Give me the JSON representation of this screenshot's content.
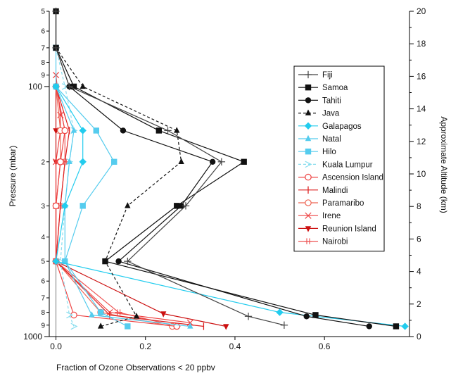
{
  "chart_data": {
    "type": "line",
    "xlabel": "Fraction of Ozone Observations < 20 ppbv",
    "ylabel_left": "Pressure (mbar)",
    "ylabel_right": "Approximate Altitude (km)",
    "x_axis": {
      "range": [
        -0.015,
        0.79
      ],
      "ticks": [
        0.0,
        0.2,
        0.4,
        0.6
      ],
      "tick_labels": [
        "0.0",
        "0.2",
        "0.4",
        "0.6"
      ]
    },
    "y_axis_left": {
      "scale": "log",
      "range": [
        1000,
        50
      ],
      "major_ticks": [
        100,
        1000
      ],
      "major_labels": [
        "100",
        "1000"
      ],
      "minor_ticks": [
        50,
        60,
        70,
        80,
        90,
        200,
        300,
        400,
        500,
        600,
        700,
        800,
        900
      ],
      "minor_labels": [
        "5",
        "6",
        "7",
        "8",
        "9",
        "2",
        "3",
        "4",
        "5",
        "6",
        "7",
        "8",
        "9"
      ]
    },
    "y_axis_right": {
      "ticks": [
        0,
        2,
        4,
        6,
        8,
        10,
        12,
        14,
        16,
        18,
        20
      ],
      "tick_labels": [
        "0",
        "2",
        "4",
        "6",
        "8",
        "10",
        "12",
        "14",
        "16",
        "18",
        "20"
      ]
    },
    "legend_position": "right",
    "series": [
      {
        "name": "Fiji",
        "color": "#444444",
        "marker": "plus",
        "dash": "solid",
        "points": [
          [
            0.0,
            50
          ],
          [
            0.0,
            70
          ],
          [
            0.03,
            100
          ],
          [
            0.25,
            150
          ],
          [
            0.37,
            200
          ],
          [
            0.29,
            300
          ],
          [
            0.16,
            500
          ],
          [
            0.43,
            830
          ],
          [
            0.51,
            900
          ]
        ]
      },
      {
        "name": "Samoa",
        "color": "#111111",
        "marker": "square",
        "dash": "solid",
        "points": [
          [
            0.0,
            50
          ],
          [
            0.0,
            70
          ],
          [
            0.04,
            100
          ],
          [
            0.23,
            150
          ],
          [
            0.42,
            200
          ],
          [
            0.27,
            300
          ],
          [
            0.11,
            500
          ],
          [
            0.58,
            820
          ],
          [
            0.76,
            910
          ]
        ]
      },
      {
        "name": "Tahiti",
        "color": "#111111",
        "marker": "circle",
        "dash": "solid",
        "points": [
          [
            0.0,
            50
          ],
          [
            0.0,
            70
          ],
          [
            0.03,
            100
          ],
          [
            0.15,
            150
          ],
          [
            0.35,
            200
          ],
          [
            0.28,
            300
          ],
          [
            0.14,
            500
          ],
          [
            0.56,
            830
          ],
          [
            0.7,
            910
          ]
        ]
      },
      {
        "name": "Java",
        "color": "#111111",
        "marker": "triangle",
        "dash": "dashed",
        "points": [
          [
            0.0,
            70
          ],
          [
            0.06,
            100
          ],
          [
            0.27,
            150
          ],
          [
            0.28,
            200
          ],
          [
            0.16,
            300
          ],
          [
            0.11,
            500
          ],
          [
            0.18,
            830
          ],
          [
            0.1,
            910
          ]
        ]
      },
      {
        "name": "Galapagos",
        "color": "#22ccee",
        "marker": "diamond",
        "dash": "solid",
        "points": [
          [
            0.0,
            100
          ],
          [
            0.06,
            150
          ],
          [
            0.06,
            200
          ],
          [
            0.02,
            300
          ],
          [
            0.0,
            500
          ],
          [
            0.5,
            800
          ],
          [
            0.78,
            910
          ]
        ]
      },
      {
        "name": "Natal",
        "color": "#55ccee",
        "marker": "triangle",
        "dash": "solid",
        "points": [
          [
            0.0,
            100
          ],
          [
            0.04,
            150
          ],
          [
            0.03,
            200
          ],
          [
            0.02,
            300
          ],
          [
            0.02,
            500
          ],
          [
            0.08,
            820
          ],
          [
            0.3,
            910
          ]
        ]
      },
      {
        "name": "Hilo",
        "color": "#55ccee",
        "marker": "square",
        "dash": "solid",
        "points": [
          [
            0.0,
            70
          ],
          [
            0.0,
            100
          ],
          [
            0.09,
            150
          ],
          [
            0.13,
            200
          ],
          [
            0.06,
            300
          ],
          [
            0.02,
            500
          ],
          [
            0.1,
            800
          ],
          [
            0.16,
            910
          ]
        ]
      },
      {
        "name": "Kuala Lumpur",
        "color": "#88ddee",
        "marker": "arrow",
        "dash": "dashed",
        "points": [
          [
            0.0,
            70
          ],
          [
            0.02,
            100
          ],
          [
            0.04,
            150
          ],
          [
            0.03,
            200
          ],
          [
            0.02,
            300
          ],
          [
            0.01,
            500
          ],
          [
            0.03,
            820
          ],
          [
            0.04,
            910
          ]
        ]
      },
      {
        "name": "Ascension Island",
        "color": "#ee4444",
        "marker": "circle-open",
        "dash": "solid",
        "points": [
          [
            0.0,
            100
          ],
          [
            0.02,
            150
          ],
          [
            0.01,
            200
          ],
          [
            0.0,
            300
          ],
          [
            0.0,
            500
          ],
          [
            0.04,
            820
          ],
          [
            0.27,
            910
          ]
        ]
      },
      {
        "name": "Malindi",
        "color": "#dd2222",
        "marker": "vbar",
        "dash": "solid",
        "points": [
          [
            0.0,
            100
          ],
          [
            0.03,
            150
          ],
          [
            0.02,
            200
          ],
          [
            0.01,
            300
          ],
          [
            0.0,
            500
          ],
          [
            0.12,
            820
          ],
          [
            0.33,
            910
          ]
        ]
      },
      {
        "name": "Paramaribo",
        "color": "#ee6655",
        "marker": "circle-open",
        "dash": "solid",
        "points": [
          [
            0.0,
            100
          ],
          [
            0.01,
            150
          ],
          [
            0.01,
            200
          ],
          [
            0.0,
            300
          ],
          [
            0.0,
            500
          ],
          [
            0.1,
            800
          ],
          [
            0.26,
            910
          ]
        ]
      },
      {
        "name": "Irene",
        "color": "#ee4444",
        "marker": "x",
        "dash": "solid",
        "points": [
          [
            0.0,
            90
          ],
          [
            0.01,
            130
          ],
          [
            0.01,
            150
          ],
          [
            0.0,
            200
          ],
          [
            0.0,
            300
          ],
          [
            0.0,
            500
          ],
          [
            0.12,
            800
          ],
          [
            0.3,
            880
          ]
        ]
      },
      {
        "name": "Reunion Island",
        "color": "#cc1111",
        "marker": "triangle-down",
        "dash": "solid",
        "points": [
          [
            0.0,
            100
          ],
          [
            0.0,
            150
          ],
          [
            0.0,
            200
          ],
          [
            0.0,
            300
          ],
          [
            0.0,
            500
          ],
          [
            0.24,
            810
          ],
          [
            0.38,
            910
          ]
        ]
      },
      {
        "name": "Nairobi",
        "color": "#ee5555",
        "marker": "plus-bar",
        "dash": "solid",
        "points": [
          [
            0.0,
            100
          ],
          [
            0.02,
            150
          ],
          [
            0.02,
            200
          ],
          [
            0.01,
            300
          ],
          [
            0.0,
            500
          ],
          [
            0.14,
            800
          ],
          [
            0.27,
            910
          ]
        ]
      }
    ]
  }
}
